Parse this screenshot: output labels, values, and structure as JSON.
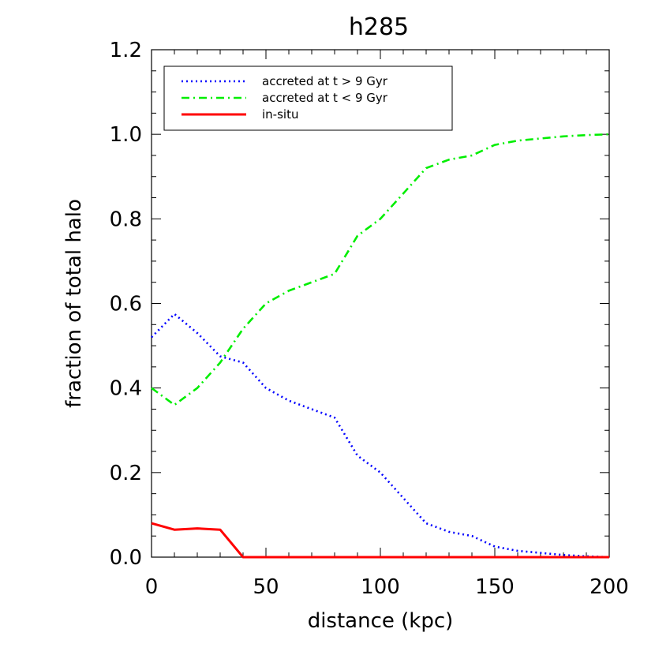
{
  "chart_data": {
    "type": "line",
    "title": "h285",
    "xlabel": "distance (kpc)",
    "ylabel": "fraction of total halo",
    "xlim": [
      0,
      200
    ],
    "ylim": [
      0,
      1.2
    ],
    "x_ticks": [
      0,
      50,
      100,
      150,
      200
    ],
    "x_tick_labels": [
      "0",
      "50",
      "100",
      "150",
      "200"
    ],
    "y_ticks": [
      0,
      0.2,
      0.4,
      0.6,
      0.8,
      1.0,
      1.2
    ],
    "y_tick_labels": [
      "0.0",
      "0.2",
      "0.4",
      "0.6",
      "0.8",
      "1.0",
      "1.2"
    ],
    "legend_position": "top-left",
    "grid": false,
    "series": [
      {
        "name": "accreted at t > 9 Gyr",
        "color": "#0000ff",
        "dash": "dotted",
        "x": [
          0,
          10,
          20,
          30,
          40,
          50,
          60,
          70,
          80,
          90,
          100,
          110,
          120,
          130,
          140,
          150,
          160,
          170,
          180,
          190,
          200
        ],
        "y": [
          0.52,
          0.575,
          0.53,
          0.475,
          0.46,
          0.4,
          0.37,
          0.35,
          0.33,
          0.24,
          0.2,
          0.14,
          0.08,
          0.06,
          0.05,
          0.025,
          0.015,
          0.01,
          0.005,
          0.002,
          0.0
        ]
      },
      {
        "name": "accreted at t < 9 Gyr",
        "color": "#00ee00",
        "dash": "dash-dot",
        "x": [
          0,
          10,
          20,
          30,
          40,
          50,
          60,
          70,
          80,
          90,
          100,
          110,
          120,
          130,
          140,
          150,
          160,
          170,
          180,
          190,
          200
        ],
        "y": [
          0.4,
          0.36,
          0.4,
          0.46,
          0.54,
          0.6,
          0.63,
          0.65,
          0.67,
          0.76,
          0.8,
          0.86,
          0.92,
          0.94,
          0.95,
          0.975,
          0.985,
          0.99,
          0.995,
          0.998,
          1.0
        ]
      },
      {
        "name": "in-situ",
        "color": "#ff0000",
        "dash": "solid",
        "x": [
          0,
          10,
          20,
          30,
          40,
          50,
          100,
          150,
          200
        ],
        "y": [
          0.08,
          0.065,
          0.068,
          0.065,
          0.0,
          0.0,
          0.0,
          0.0,
          0.0
        ]
      }
    ]
  }
}
